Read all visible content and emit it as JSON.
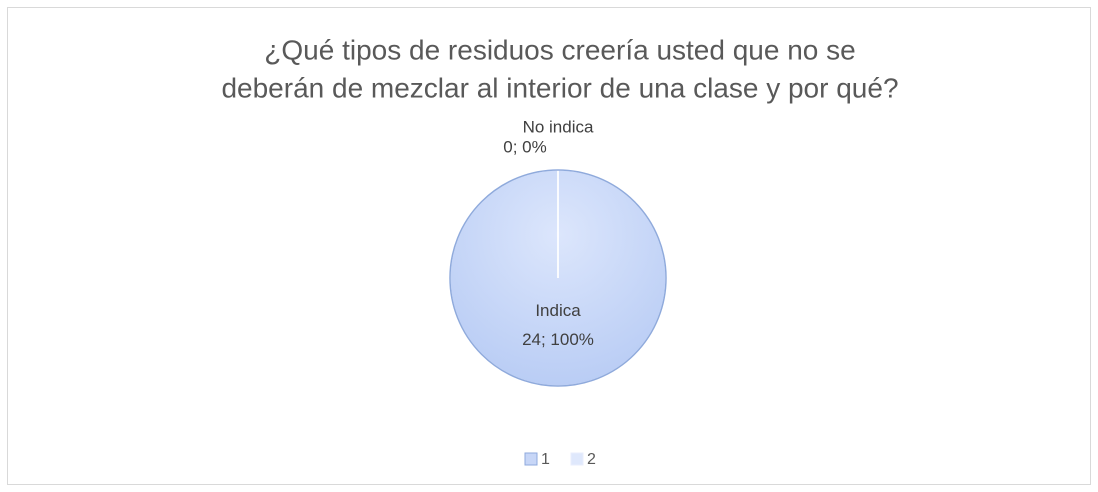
{
  "chart_data": {
    "type": "pie",
    "title": [
      "¿Qué tipos de residuos creería usted que no se",
      "deberán de mezclar al interior de una clase y por qué?"
    ],
    "categories": [
      "Indica",
      "No indica"
    ],
    "values": [
      24,
      0
    ],
    "value_labels": [
      "24; 100%",
      "0; 0%"
    ],
    "colors": [
      "#c7d6f7",
      "#dfe8fc"
    ],
    "legend": [
      "1",
      "2"
    ]
  }
}
